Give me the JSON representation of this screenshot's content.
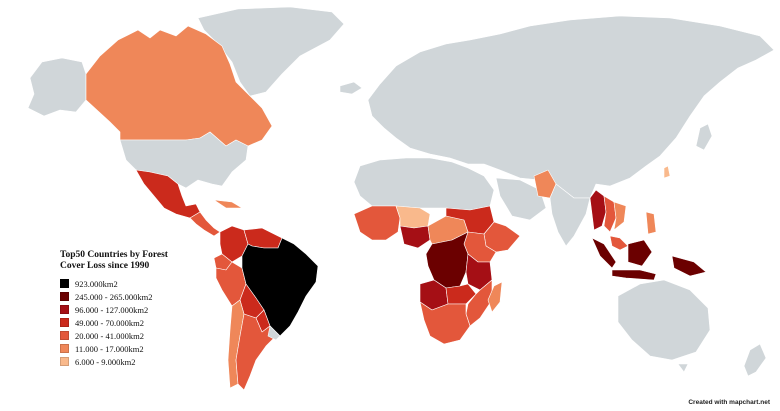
{
  "legend": {
    "title": "Top50 Countries by Forest Cover Loss since 1990",
    "items": [
      {
        "label": "923.000km2",
        "color": "#000000"
      },
      {
        "label": "245.000 - 265.000km2",
        "color": "#6b0000"
      },
      {
        "label": "96.000 - 127.000km2",
        "color": "#a50f15"
      },
      {
        "label": "49.000 - 70.000km2",
        "color": "#cb2a1c"
      },
      {
        "label": "20.000 - 41.000km2",
        "color": "#e3573b"
      },
      {
        "label": "11.000 - 17.000km2",
        "color": "#ef8759"
      },
      {
        "label": "6.000 - 9.000km2",
        "color": "#f9b98c"
      }
    ]
  },
  "default_color": "#d0d6d9",
  "credit": "Created with mapchart.net",
  "highlighted_regions": [
    {
      "name": "Brazil",
      "class": 0
    },
    {
      "name": "DR Congo",
      "class": 1
    },
    {
      "name": "Indonesia",
      "class": 1
    },
    {
      "name": "Myanmar",
      "class": 2
    },
    {
      "name": "Nigeria",
      "class": 2
    },
    {
      "name": "Tanzania",
      "class": 2
    },
    {
      "name": "Bolivia",
      "class": 3
    },
    {
      "name": "Mexico",
      "class": 3
    },
    {
      "name": "Zambia",
      "class": 3
    },
    {
      "name": "Canada",
      "class": 5
    }
  ]
}
